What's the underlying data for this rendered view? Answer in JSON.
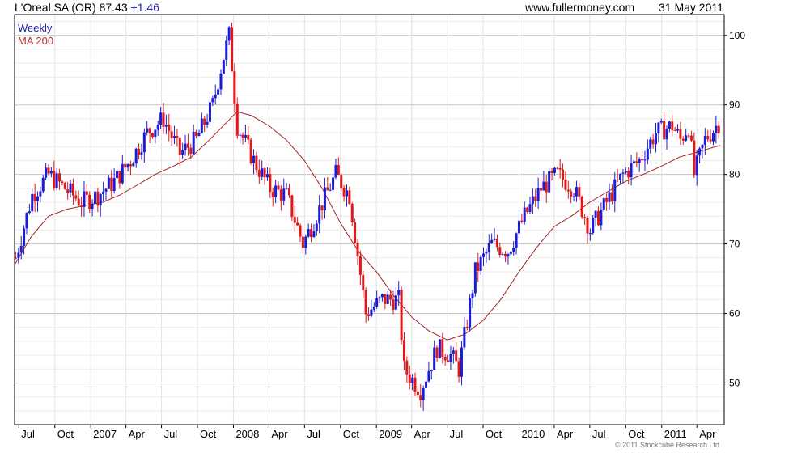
{
  "header": {
    "title": "L'Oreal SA (OR) 87.43",
    "change": "+1.46",
    "website": "www.fullermoney.com",
    "date": "31 May 2011"
  },
  "legend": {
    "series_label": "Weekly",
    "ma_label": "MA 200"
  },
  "copyright": "© 2011 Stockcube Research Ltd",
  "colors": {
    "up": "#1c1cd6",
    "down": "#e01818",
    "ma": "#a82222",
    "grid": "#d8d8d8"
  },
  "chart_data": {
    "type": "candlestick",
    "ylim": [
      44,
      103
    ],
    "y_ticks": [
      50,
      60,
      70,
      80,
      90,
      100
    ],
    "x_tick_labels": [
      "Jul",
      "Oct",
      "2007",
      "Apr",
      "Jul",
      "Oct",
      "2008",
      "Apr",
      "Jul",
      "Oct",
      "2009",
      "Apr",
      "Jul",
      "Oct",
      "2010",
      "Apr",
      "Jul",
      "Oct",
      "2011",
      "Apr"
    ],
    "x_tick_dates": [
      "2006-07-01",
      "2006-10-01",
      "2007-01-01",
      "2007-04-01",
      "2007-07-01",
      "2007-10-01",
      "2008-01-01",
      "2008-04-01",
      "2008-07-01",
      "2008-10-01",
      "2009-01-01",
      "2009-04-01",
      "2009-07-01",
      "2009-10-01",
      "2010-01-01",
      "2010-04-01",
      "2010-07-01",
      "2010-10-01",
      "2011-01-01",
      "2011-04-01"
    ],
    "x_range": [
      "2006-06-20",
      "2011-06-10"
    ],
    "grid": true,
    "close_series": {
      "dates": [
        "2006-06-23",
        "2006-08-04",
        "2006-09-15",
        "2006-10-27",
        "2006-12-08",
        "2007-01-19",
        "2007-03-02",
        "2007-04-13",
        "2007-05-25",
        "2007-07-06",
        "2007-08-17",
        "2007-09-28",
        "2007-11-09",
        "2007-12-07",
        "2007-12-21",
        "2008-01-11",
        "2008-02-22",
        "2008-04-04",
        "2008-05-16",
        "2008-06-27",
        "2008-08-08",
        "2008-09-19",
        "2008-10-24",
        "2008-12-05",
        "2009-01-16",
        "2009-02-27",
        "2009-03-13",
        "2009-04-24",
        "2009-06-05",
        "2009-07-10",
        "2009-07-31",
        "2009-09-11",
        "2009-10-23",
        "2009-12-04",
        "2010-01-15",
        "2010-02-26",
        "2010-04-09",
        "2010-05-21",
        "2010-07-02",
        "2010-08-13",
        "2010-09-24",
        "2010-11-05",
        "2010-12-17",
        "2011-01-28",
        "2011-02-18",
        "2011-03-11",
        "2011-03-25",
        "2011-04-22",
        "2011-05-27"
      ],
      "values": [
        68,
        77,
        80,
        78,
        76,
        77,
        79,
        82,
        86,
        88,
        83,
        85,
        90,
        97,
        100,
        87,
        82,
        78,
        77,
        70,
        75,
        80,
        77,
        60,
        62,
        62,
        52,
        49,
        55,
        54,
        52,
        66,
        70,
        69,
        74,
        78,
        80,
        78,
        72,
        76,
        80,
        82,
        86,
        87,
        85,
        87,
        80,
        85,
        87.43
      ]
    },
    "ma_series": {
      "name": "MA 200",
      "dates": [
        "2006-06-20",
        "2006-08-01",
        "2006-09-15",
        "2006-11-01",
        "2006-12-15",
        "2007-02-01",
        "2007-03-15",
        "2007-05-01",
        "2007-06-15",
        "2007-08-01",
        "2007-09-15",
        "2007-11-01",
        "2007-12-15",
        "2008-01-10",
        "2008-02-15",
        "2008-04-01",
        "2008-05-15",
        "2008-07-01",
        "2008-08-15",
        "2008-10-01",
        "2008-11-15",
        "2009-01-01",
        "2009-02-15",
        "2009-04-01",
        "2009-05-15",
        "2009-07-01",
        "2009-08-15",
        "2009-10-01",
        "2009-11-15",
        "2010-01-01",
        "2010-02-15",
        "2010-04-01",
        "2010-05-15",
        "2010-07-01",
        "2010-08-15",
        "2010-10-01",
        "2010-11-15",
        "2011-01-01",
        "2011-02-15",
        "2011-04-01",
        "2011-05-31"
      ],
      "values": [
        67,
        71,
        74,
        75,
        75.5,
        76,
        77,
        78.5,
        80,
        81.2,
        82.5,
        85,
        87.5,
        89,
        88.5,
        87,
        85,
        82,
        78,
        73,
        69,
        66,
        62.5,
        59.5,
        57.5,
        56.2,
        57,
        59,
        62,
        66,
        69.5,
        72.5,
        74,
        76,
        77.5,
        79,
        80,
        81.2,
        82.5,
        83.2,
        84.2
      ]
    }
  }
}
